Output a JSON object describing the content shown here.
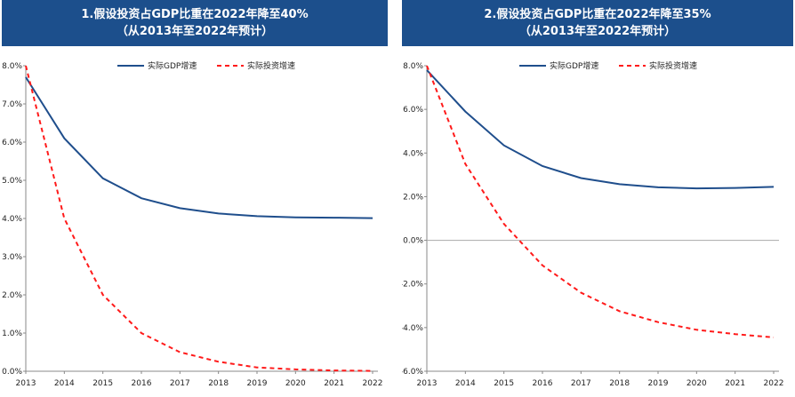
{
  "colors": {
    "title_bg": "#1c4f8c",
    "gdp": "#1f4e8c",
    "invest": "#ff1a1a"
  },
  "chart_data": [
    {
      "type": "line",
      "title_line1": "1.假设投资占GDP比重在2022年降至40%",
      "title_line2": "（从2013年至2022年预计）",
      "x": [
        "2013",
        "2014",
        "2015",
        "2016",
        "2017",
        "2018",
        "2019",
        "2020",
        "2021",
        "2022"
      ],
      "ylim": [
        0,
        8
      ],
      "yticks": [
        {
          "v": 8,
          "label": "8.0%"
        },
        {
          "v": 7,
          "label": "7.0%"
        },
        {
          "v": 6,
          "label": "6.0%"
        },
        {
          "v": 5,
          "label": "5.0%"
        },
        {
          "v": 4,
          "label": "4.0%"
        },
        {
          "v": 3,
          "label": "3.0%"
        },
        {
          "v": 2,
          "label": "2.0%"
        },
        {
          "v": 1,
          "label": "1.0%"
        },
        {
          "v": 0,
          "label": "0.0%"
        }
      ],
      "series": [
        {
          "name": "实际GDP增速",
          "style": "solid",
          "values": [
            7.7,
            6.1,
            5.05,
            4.53,
            4.27,
            4.13,
            4.06,
            4.03,
            4.02,
            4.01
          ]
        },
        {
          "name": "实际投资增速",
          "style": "dashed",
          "values": [
            8.0,
            4.0,
            2.0,
            1.0,
            0.5,
            0.25,
            0.1,
            0.05,
            0.02,
            0.01
          ]
        }
      ]
    },
    {
      "type": "line",
      "title_line1": "2.假设投资占GDP比重在2022年降至35%",
      "title_line2": "（从2013年至2022年预计）",
      "x": [
        "2013",
        "2014",
        "2015",
        "2016",
        "2017",
        "2018",
        "2019",
        "2020",
        "2021",
        "2022"
      ],
      "ylim": [
        -6,
        8
      ],
      "yticks": [
        {
          "v": 8,
          "label": "8.0%"
        },
        {
          "v": 6,
          "label": "6.0%"
        },
        {
          "v": 4,
          "label": "4.0%"
        },
        {
          "v": 2,
          "label": "2.0%"
        },
        {
          "v": 0,
          "label": "0.0%"
        },
        {
          "v": -2,
          "label": "-2.0%"
        },
        {
          "v": -4,
          "label": "-4.0%"
        },
        {
          "v": -6,
          "label": "-6.0%"
        }
      ],
      "zero_line": true,
      "series": [
        {
          "name": "实际GDP增速",
          "style": "solid",
          "values": [
            7.8,
            5.9,
            4.35,
            3.4,
            2.85,
            2.57,
            2.43,
            2.38,
            2.4,
            2.45
          ]
        },
        {
          "name": "实际投资增速",
          "style": "dashed",
          "values": [
            8.0,
            3.5,
            0.75,
            -1.15,
            -2.4,
            -3.25,
            -3.75,
            -4.1,
            -4.3,
            -4.45
          ]
        }
      ]
    }
  ]
}
